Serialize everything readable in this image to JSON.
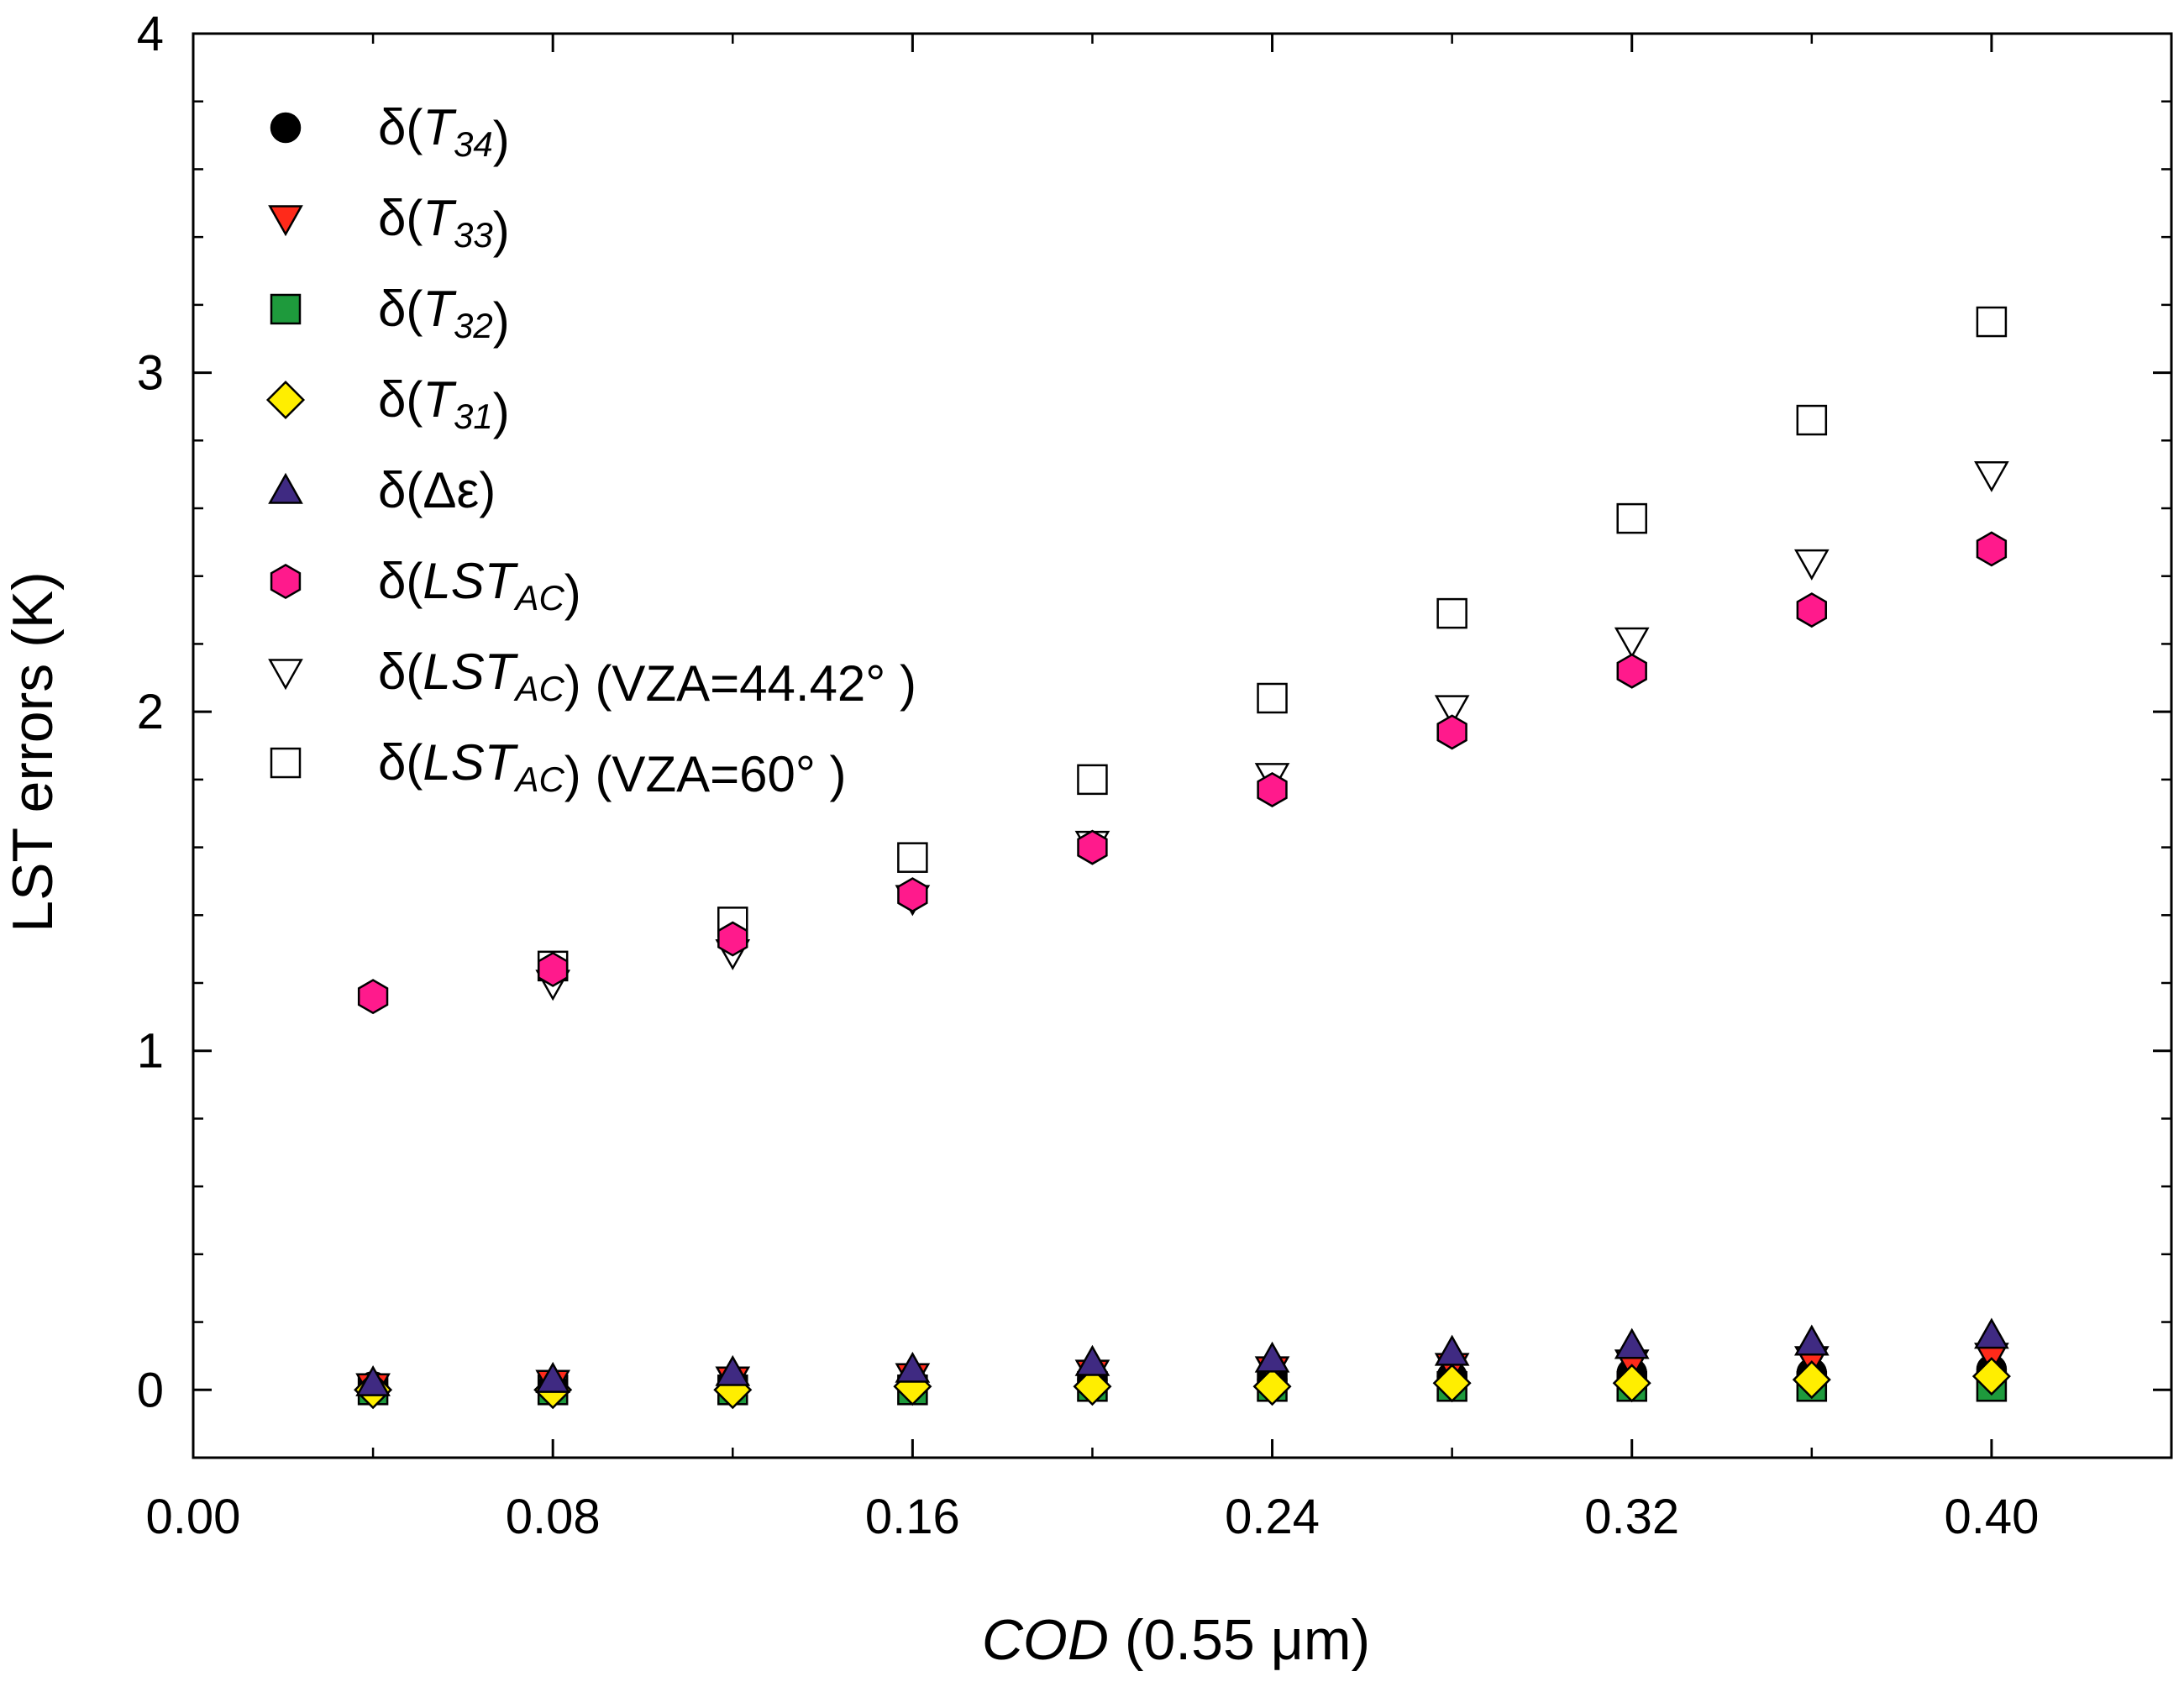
{
  "chart_data": {
    "type": "scatter",
    "xlabel_italic": "COD",
    "xlabel_rest": " (0.55 μm)",
    "ylabel": "LST errors (K)",
    "xlim": [
      0.0,
      0.44
    ],
    "ylim": [
      -0.2,
      4.0
    ],
    "xticks": [
      "0.00",
      "0.08",
      "0.16",
      "0.24",
      "0.32",
      "0.40"
    ],
    "xtick_values": [
      0.0,
      0.08,
      0.16,
      0.24,
      0.32,
      0.4
    ],
    "yticks": [
      "0",
      "1",
      "2",
      "3",
      "4"
    ],
    "ytick_values": [
      0,
      1,
      2,
      3,
      4
    ],
    "legend_position": "top-left",
    "x": [
      0.04,
      0.08,
      0.12,
      0.16,
      0.2,
      0.24,
      0.28,
      0.32,
      0.36,
      0.4
    ],
    "series": [
      {
        "name": "δ(T34)",
        "label_parts": [
          {
            "t": "δ("
          },
          {
            "t": "T",
            "italic": true
          },
          {
            "t": "34",
            "italic": true,
            "sub": true
          },
          {
            "t": ")"
          }
        ],
        "marker": "circle",
        "color": "#000000",
        "values": [
          0.01,
          0.01,
          0.02,
          0.02,
          0.03,
          0.03,
          0.04,
          0.05,
          0.05,
          0.06
        ]
      },
      {
        "name": "δ(T33)",
        "label_parts": [
          {
            "t": "δ("
          },
          {
            "t": "T",
            "italic": true
          },
          {
            "t": "33",
            "italic": true,
            "sub": true
          },
          {
            "t": ")"
          }
        ],
        "marker": "triangle-down",
        "color": "#ff2a1a",
        "values": [
          0.01,
          0.02,
          0.03,
          0.04,
          0.05,
          0.06,
          0.07,
          0.08,
          0.09,
          0.1
        ]
      },
      {
        "name": "δ(T32)",
        "label_parts": [
          {
            "t": "δ("
          },
          {
            "t": "T",
            "italic": true
          },
          {
            "t": "32",
            "italic": true,
            "sub": true
          },
          {
            "t": ")"
          }
        ],
        "marker": "square",
        "color": "#1e9a3c",
        "values": [
          0.0,
          0.0,
          0.0,
          0.0,
          0.01,
          0.01,
          0.01,
          0.01,
          0.01,
          0.01
        ]
      },
      {
        "name": "δ(T31)",
        "label_parts": [
          {
            "t": "δ("
          },
          {
            "t": "T",
            "italic": true
          },
          {
            "t": "31",
            "italic": true,
            "sub": true
          },
          {
            "t": ")"
          }
        ],
        "marker": "diamond",
        "color": "#ffee00",
        "values": [
          0.0,
          0.0,
          0.0,
          0.01,
          0.01,
          0.01,
          0.02,
          0.02,
          0.03,
          0.04
        ]
      },
      {
        "name": "δ(Δε)",
        "label_parts": [
          {
            "t": "δ(Δε)"
          }
        ],
        "marker": "triangle-up",
        "color": "#3f2a82",
        "values": [
          0.02,
          0.03,
          0.05,
          0.06,
          0.08,
          0.09,
          0.11,
          0.13,
          0.14,
          0.16
        ]
      },
      {
        "name": "δ(LSTAC)",
        "label_parts": [
          {
            "t": "δ("
          },
          {
            "t": "LST",
            "italic": true
          },
          {
            "t": "AC",
            "italic": true,
            "sub": true
          },
          {
            "t": ")"
          }
        ],
        "marker": "hexagon",
        "color": "#ff1a8c",
        "values": [
          1.16,
          1.24,
          1.33,
          1.46,
          1.6,
          1.77,
          1.94,
          2.12,
          2.3,
          2.48
        ]
      },
      {
        "name": "δ(LSTAC) (VZA=44.42° )",
        "label_parts": [
          {
            "t": "δ("
          },
          {
            "t": "LST",
            "italic": true
          },
          {
            "t": "AC",
            "italic": true,
            "sub": true
          },
          {
            "t": ") (VZA=44.42°  )"
          }
        ],
        "marker": "triangle-down-open",
        "color": "#ffffff",
        "values": [
          null,
          1.2,
          1.29,
          1.45,
          1.61,
          1.81,
          2.01,
          2.21,
          2.44,
          2.7
        ]
      },
      {
        "name": "δ(LSTAC) (VZA=60° )",
        "label_parts": [
          {
            "t": "δ("
          },
          {
            "t": "LST",
            "italic": true
          },
          {
            "t": "AC",
            "italic": true,
            "sub": true
          },
          {
            "t": ") (VZA=60°  )"
          }
        ],
        "marker": "square-open",
        "color": "#ffffff",
        "values": [
          null,
          1.25,
          1.38,
          1.57,
          1.8,
          2.04,
          2.29,
          2.57,
          2.86,
          3.15
        ]
      }
    ]
  }
}
